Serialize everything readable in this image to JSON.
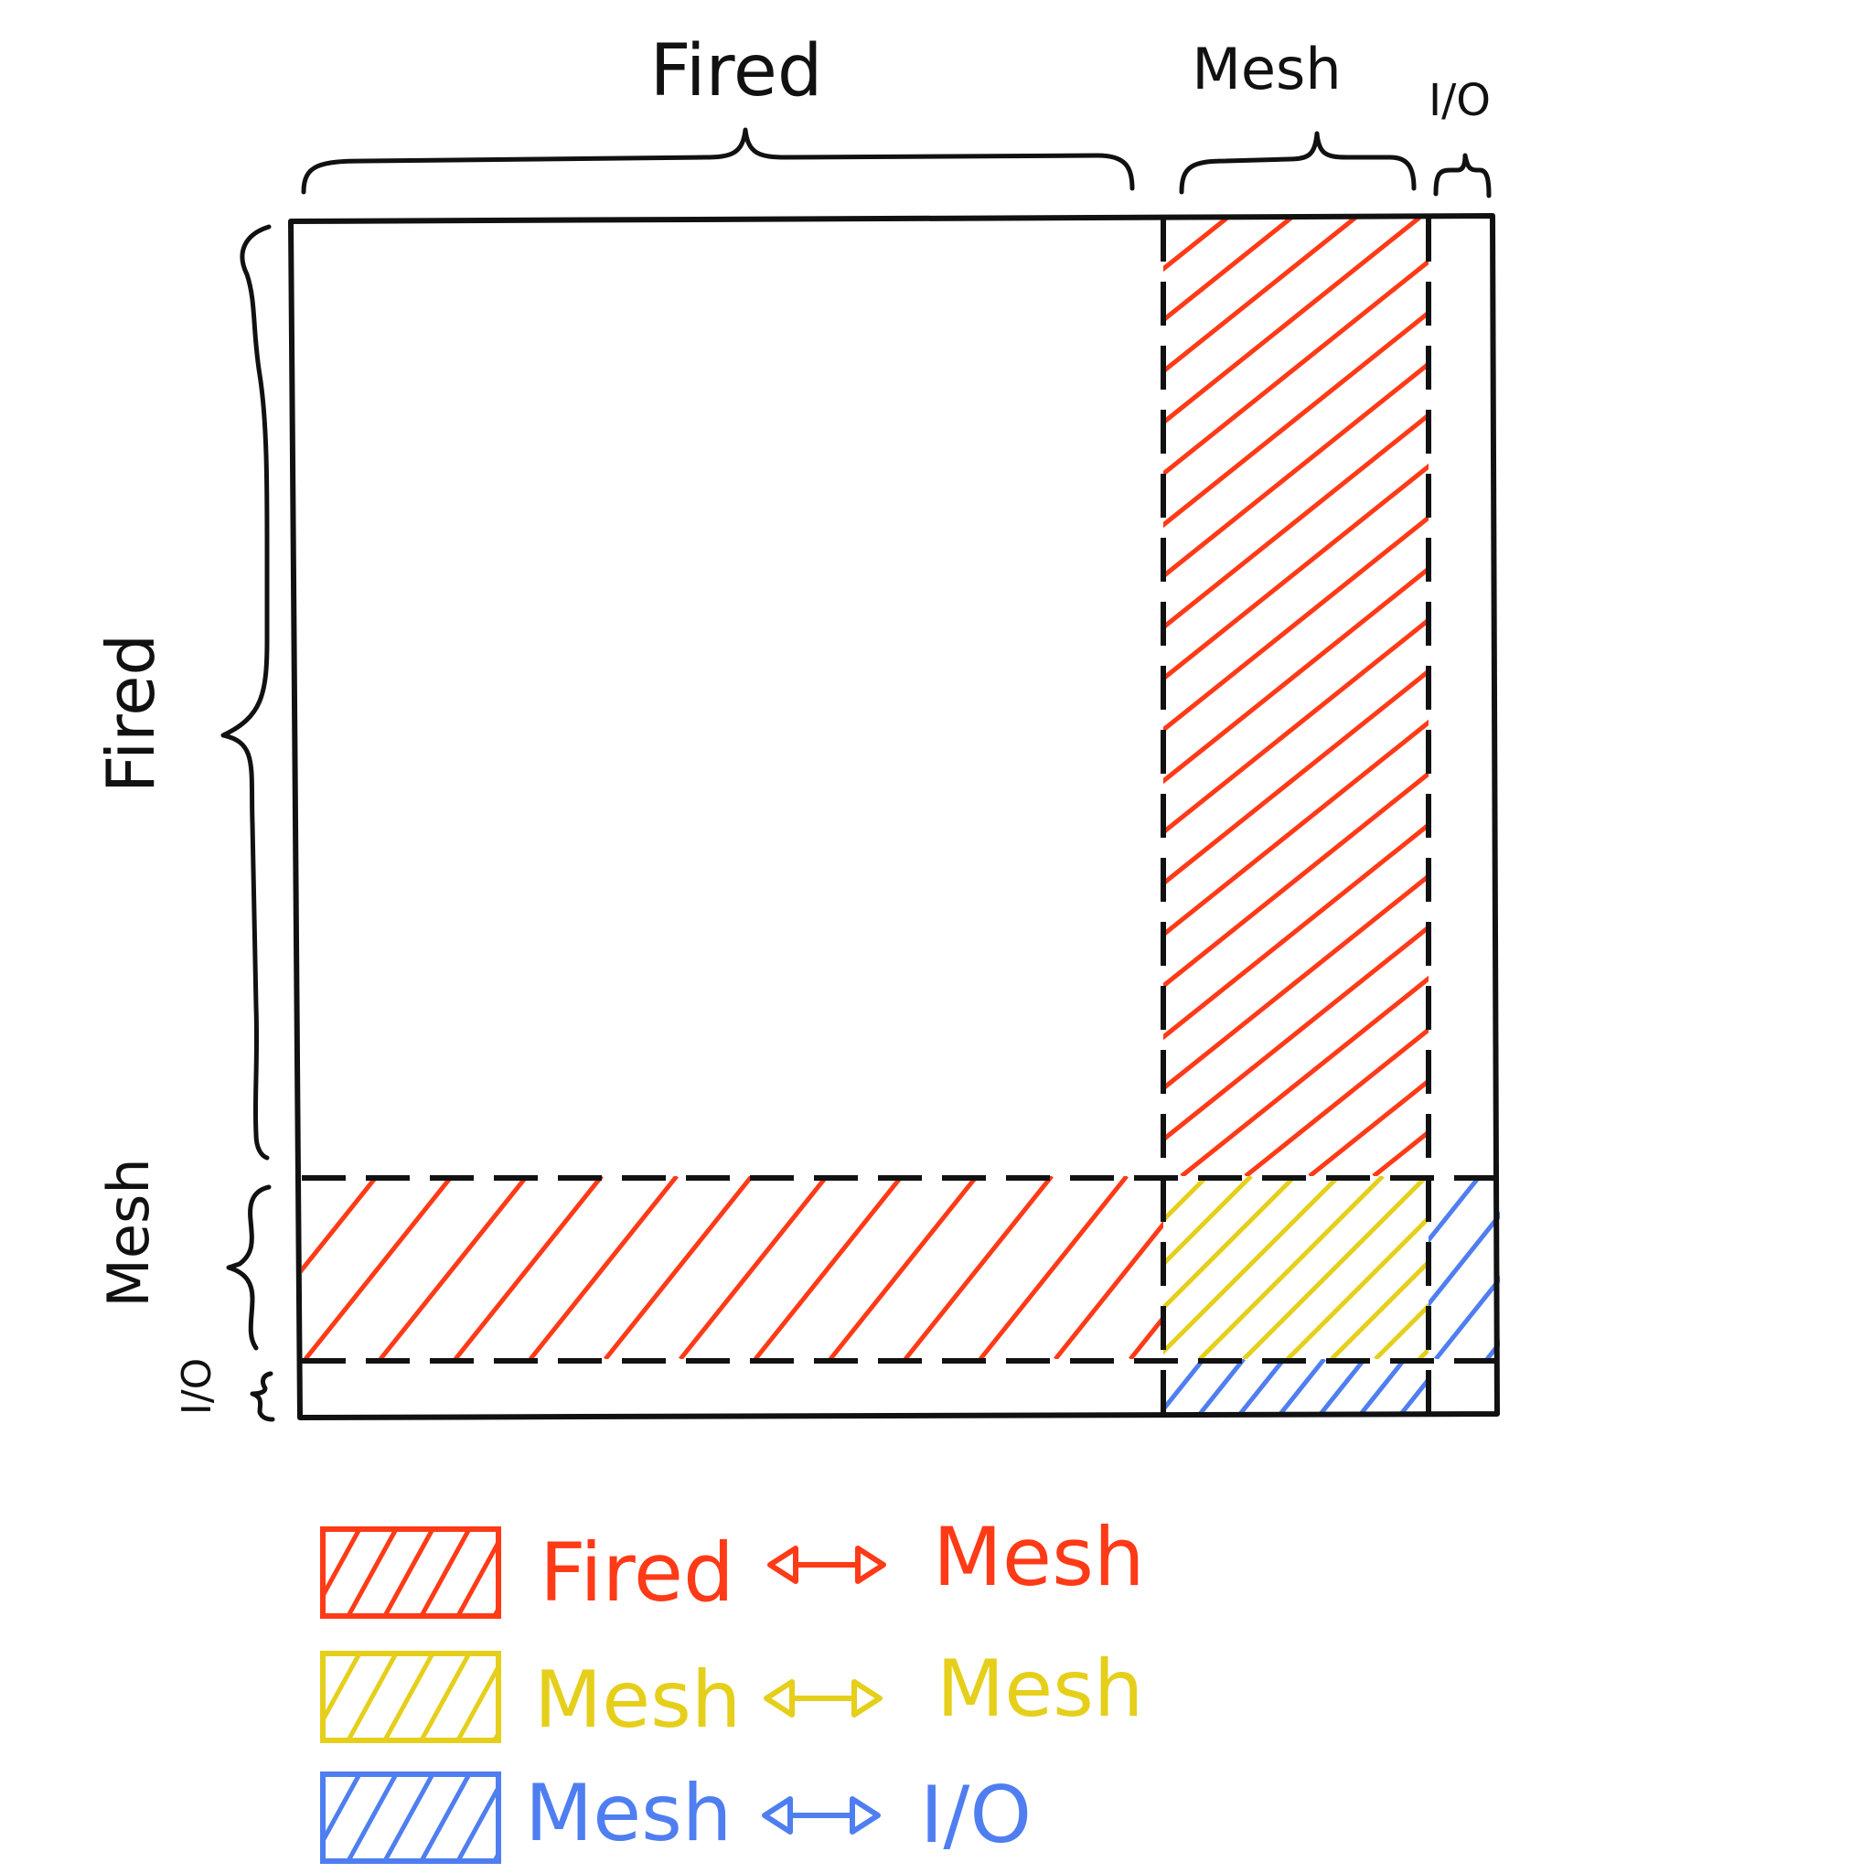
{
  "columns": {
    "fired_label": "Fired",
    "mesh_label": "Mesh",
    "io_label": "I/O"
  },
  "rows": {
    "fired_label": "Fired",
    "mesh_label": "Mesh",
    "io_label": "I/O"
  },
  "legend": [
    {
      "from": "Fired",
      "to": "Mesh",
      "color": "#ff3a17"
    },
    {
      "from": "Mesh",
      "to": "Mesh",
      "color": "#e5cf1a"
    },
    {
      "from": "Mesh",
      "to": "I/O",
      "color": "#4f7ef0"
    }
  ],
  "colors": {
    "fired_mesh": "#ff3a17",
    "mesh_mesh": "#e5cf1a",
    "mesh_io": "#4f7ef0",
    "line": "#111111"
  },
  "icons": {
    "bidirectional_arrow": "double-arrow-icon"
  }
}
